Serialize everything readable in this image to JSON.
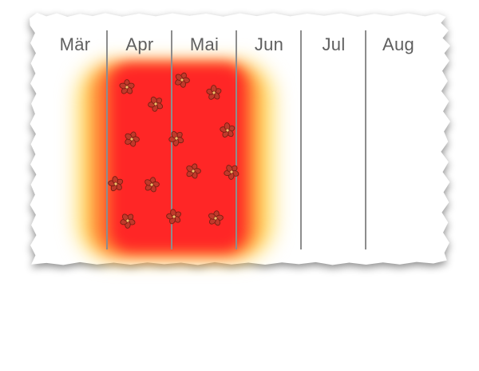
{
  "months": [
    {
      "label": "Mär"
    },
    {
      "label": "Apr"
    },
    {
      "label": "Mai"
    },
    {
      "label": "Jun"
    },
    {
      "label": "Jul"
    },
    {
      "label": "Aug"
    }
  ],
  "season_highlight": {
    "core_color": "#ff2626",
    "mid_color": "#ff702d",
    "edge_color": "#ffd64b"
  },
  "blossom_icon": {
    "icon": "blossom-icon",
    "petal_color": "#c0392b",
    "outline_color": "#7a1f12",
    "center_color": "#f3c16a"
  }
}
